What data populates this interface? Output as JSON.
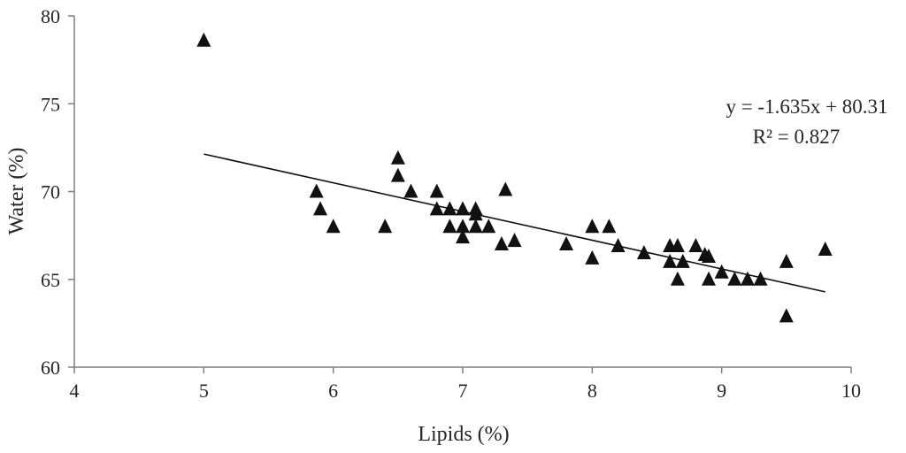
{
  "chart_data": {
    "type": "scatter",
    "xlabel": "Lipids (%)",
    "ylabel": "Water (%)",
    "xlim": [
      4,
      10
    ],
    "ylim": [
      60,
      80
    ],
    "xticks": [
      "4",
      "5",
      "6",
      "7",
      "8",
      "9",
      "10"
    ],
    "yticks": [
      "60",
      "65",
      "70",
      "75",
      "80"
    ],
    "grid": false,
    "marker": "triangle",
    "marker_color": "#111111",
    "points": [
      [
        5.0,
        78.6
      ],
      [
        5.87,
        70.0
      ],
      [
        5.9,
        69.0
      ],
      [
        6.0,
        68.0
      ],
      [
        6.4,
        68.0
      ],
      [
        6.5,
        71.9
      ],
      [
        6.5,
        70.9
      ],
      [
        6.6,
        70.0
      ],
      [
        6.8,
        70.0
      ],
      [
        6.8,
        69.0
      ],
      [
        6.9,
        69.0
      ],
      [
        6.9,
        68.0
      ],
      [
        7.0,
        69.0
      ],
      [
        7.0,
        68.0
      ],
      [
        7.0,
        67.4
      ],
      [
        7.1,
        69.0
      ],
      [
        7.1,
        68.7
      ],
      [
        7.1,
        68.0
      ],
      [
        7.2,
        68.0
      ],
      [
        7.3,
        67.0
      ],
      [
        7.33,
        70.1
      ],
      [
        7.4,
        67.2
      ],
      [
        7.8,
        67.0
      ],
      [
        8.0,
        68.0
      ],
      [
        8.0,
        66.2
      ],
      [
        8.13,
        68.0
      ],
      [
        8.2,
        66.9
      ],
      [
        8.4,
        66.5
      ],
      [
        8.6,
        66.9
      ],
      [
        8.6,
        66.0
      ],
      [
        8.66,
        66.9
      ],
      [
        8.66,
        65.0
      ],
      [
        8.7,
        66.0
      ],
      [
        8.8,
        66.9
      ],
      [
        8.87,
        66.4
      ],
      [
        8.9,
        66.3
      ],
      [
        8.9,
        65.0
      ],
      [
        9.0,
        65.4
      ],
      [
        9.1,
        65.0
      ],
      [
        9.2,
        65.0
      ],
      [
        9.3,
        65.0
      ],
      [
        9.5,
        66.0
      ],
      [
        9.5,
        62.9
      ],
      [
        9.8,
        66.7
      ]
    ],
    "trendline": {
      "type": "linear",
      "slope": -1.635,
      "intercept": 80.31,
      "x_range": [
        5.0,
        9.8
      ]
    },
    "annotations": [
      "y = -1.635x + 80.31",
      "R² = 0.827"
    ]
  }
}
